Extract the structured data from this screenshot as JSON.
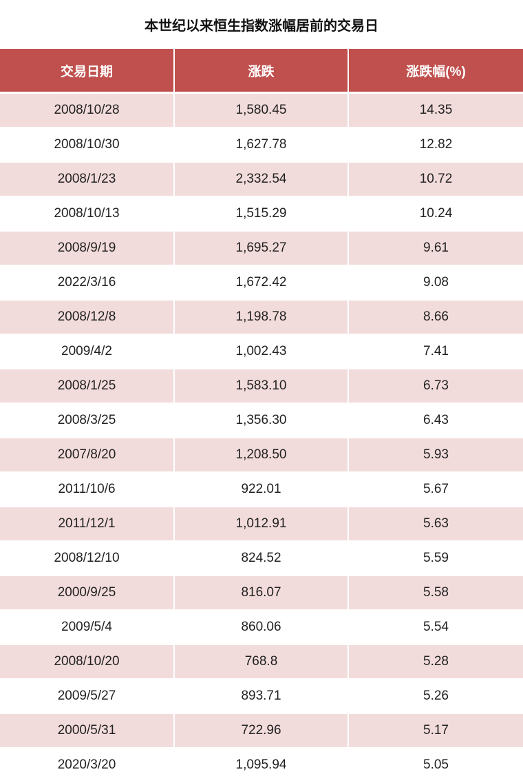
{
  "title": "本世纪以来恒生指数涨幅居前的交易日",
  "table": {
    "header": [
      "交易日期",
      "涨跌",
      "涨跌幅(%)"
    ],
    "rows": [
      [
        "2008/10/28",
        "1,580.45",
        "14.35"
      ],
      [
        "2008/10/30",
        "1,627.78",
        "12.82"
      ],
      [
        "2008/1/23",
        "2,332.54",
        "10.72"
      ],
      [
        "2008/10/13",
        "1,515.29",
        "10.24"
      ],
      [
        "2008/9/19",
        "1,695.27",
        "9.61"
      ],
      [
        "2022/3/16",
        "1,672.42",
        "9.08"
      ],
      [
        "2008/12/8",
        "1,198.78",
        "8.66"
      ],
      [
        "2009/4/2",
        "1,002.43",
        "7.41"
      ],
      [
        "2008/1/25",
        "1,583.10",
        "6.73"
      ],
      [
        "2008/3/25",
        "1,356.30",
        "6.43"
      ],
      [
        "2007/8/20",
        "1,208.50",
        "5.93"
      ],
      [
        "2011/10/6",
        "922.01",
        "5.67"
      ],
      [
        "2011/12/1",
        "1,012.91",
        "5.63"
      ],
      [
        "2008/12/10",
        "824.52",
        "5.59"
      ],
      [
        "2000/9/25",
        "816.07",
        "5.58"
      ],
      [
        "2009/5/4",
        "860.06",
        "5.54"
      ],
      [
        "2008/10/20",
        "768.8",
        "5.28"
      ],
      [
        "2009/5/27",
        "893.71",
        "5.26"
      ],
      [
        "2000/5/31",
        "722.96",
        "5.17"
      ],
      [
        "2020/3/20",
        "1,095.94",
        "5.05"
      ]
    ]
  }
}
